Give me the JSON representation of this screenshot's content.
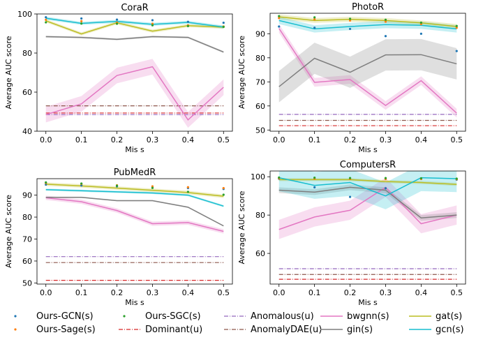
{
  "chart_data": [
    {
      "type": "line",
      "title": "CoraR",
      "xlabel": "Mis s",
      "ylabel": "Average AUC score",
      "x": [
        0.0,
        0.1,
        0.2,
        0.3,
        0.4,
        0.5
      ],
      "x_ticks": [
        "0.0",
        "0.1",
        "0.2",
        "0.3",
        "0.4",
        "0.5"
      ],
      "y_ticks": [
        40,
        60,
        80,
        100
      ],
      "xlim": [
        -0.025,
        0.525
      ],
      "ylim": [
        40,
        100
      ],
      "series": [
        {
          "name": "Ours-GCN(s)",
          "color": "#1f77b4",
          "kind": "point",
          "values": [
            98.3,
            97.7,
            97.1,
            96.8,
            96.0,
            95.5
          ]
        },
        {
          "name": "Ours-Sage(s)",
          "color": "#ff7f0e",
          "kind": "point",
          "values": [
            97.0,
            96.3,
            95.6,
            95.0,
            94.2,
            93.6
          ]
        },
        {
          "name": "Ours-SGC(s)",
          "color": "#2ca02c",
          "kind": "point",
          "values": [
            95.7,
            95.1,
            95.0,
            94.2,
            93.8,
            93.4
          ]
        },
        {
          "name": "Anomalous(u)",
          "color": "#9467bd",
          "kind": "dashdot",
          "values": [
            48.5,
            48.5,
            48.5,
            48.5,
            48.5,
            48.5
          ]
        },
        {
          "name": "Dominant(u)",
          "color": "#d62728",
          "kind": "dashdot",
          "values": [
            49.3,
            49.3,
            49.3,
            49.3,
            49.3,
            49.3
          ]
        },
        {
          "name": "AnomalyDAE(u)",
          "color": "#8c564b",
          "kind": "dashdot",
          "values": [
            53.0,
            53.0,
            53.0,
            53.0,
            53.0,
            53.0
          ]
        },
        {
          "name": "bwgnn(s)",
          "color": "#e377c2",
          "kind": "line",
          "values": [
            48.5,
            54.0,
            68.5,
            73.0,
            45.8,
            62.5
          ],
          "band": 4.0
        },
        {
          "name": "gin(s)",
          "color": "#7f7f7f",
          "kind": "line",
          "values": [
            88.4,
            88.0,
            87.0,
            88.4,
            88.0,
            80.5
          ],
          "band": 0.5
        },
        {
          "name": "gat(s)",
          "color": "#bcbd22",
          "kind": "line",
          "values": [
            96.5,
            89.8,
            95.5,
            91.2,
            94.0,
            93.2
          ],
          "band": 0.8
        },
        {
          "name": "gcn(s)",
          "color": "#17becf",
          "kind": "line",
          "values": [
            97.8,
            95.2,
            96.2,
            94.7,
            95.7,
            93.3
          ],
          "band": 0.8
        }
      ]
    },
    {
      "type": "line",
      "title": "PhotoR",
      "xlabel": "Mis s",
      "ylabel": "Average AUC score",
      "x": [
        0.0,
        0.1,
        0.2,
        0.3,
        0.4,
        0.5
      ],
      "x_ticks": [
        "0.0",
        "0.1",
        "0.2",
        "0.3",
        "0.4",
        "0.5"
      ],
      "y_ticks": [
        50,
        60,
        70,
        80,
        90
      ],
      "xlim": [
        -0.025,
        0.525
      ],
      "ylim": [
        49.5,
        98.5
      ],
      "series": [
        {
          "name": "Ours-GCN(s)",
          "color": "#1f77b4",
          "kind": "point",
          "values": [
            93.0,
            92.5,
            92.0,
            89.0,
            90.0,
            82.8
          ]
        },
        {
          "name": "Ours-Sage(s)",
          "color": "#ff7f0e",
          "kind": "point",
          "values": [
            96.5,
            96.0,
            95.5,
            95.0,
            94.0,
            92.5
          ]
        },
        {
          "name": "Ours-SGC(s)",
          "color": "#2ca02c",
          "kind": "point",
          "values": [
            97.3,
            96.8,
            96.2,
            95.8,
            94.6,
            93.2
          ]
        },
        {
          "name": "Anomalous(u)",
          "color": "#9467bd",
          "kind": "dashdot",
          "values": [
            56.5,
            56.5,
            56.5,
            56.5,
            56.5,
            56.5
          ]
        },
        {
          "name": "Dominant(u)",
          "color": "#d62728",
          "kind": "dashdot",
          "values": [
            51.8,
            51.8,
            51.8,
            51.8,
            51.8,
            51.8
          ]
        },
        {
          "name": "AnomalyDAE(u)",
          "color": "#8c564b",
          "kind": "dashdot",
          "values": [
            54.0,
            54.0,
            54.0,
            54.0,
            54.0,
            54.0
          ]
        },
        {
          "name": "bwgnn(s)",
          "color": "#e377c2",
          "kind": "line",
          "values": [
            92.2,
            69.8,
            71.0,
            60.2,
            70.5,
            57.0
          ],
          "band": 1.8
        },
        {
          "name": "gin(s)",
          "color": "#7f7f7f",
          "kind": "line",
          "values": [
            68.0,
            79.8,
            74.0,
            81.2,
            81.3,
            77.5
          ],
          "band": 6.5
        },
        {
          "name": "gat(s)",
          "color": "#bcbd22",
          "kind": "line",
          "values": [
            97.0,
            95.5,
            96.0,
            95.5,
            94.5,
            93.0
          ],
          "band": 1.0
        },
        {
          "name": "gcn(s)",
          "color": "#17becf",
          "kind": "line",
          "values": [
            95.5,
            92.0,
            93.0,
            93.8,
            93.5,
            92.0
          ],
          "band": 1.5
        }
      ]
    },
    {
      "type": "line",
      "title": "PubMedR",
      "xlabel": "Mis s",
      "ylabel": "Average AUC score",
      "x": [
        0.0,
        0.1,
        0.2,
        0.3,
        0.4,
        0.5
      ],
      "x_ticks": [
        "0.0",
        "0.1",
        "0.2",
        "0.3",
        "0.4",
        "0.5"
      ],
      "y_ticks": [
        50,
        60,
        70,
        80,
        90
      ],
      "xlim": [
        -0.025,
        0.525
      ],
      "ylim": [
        49.5,
        97.5
      ],
      "series": [
        {
          "name": "Ours-GCN(s)",
          "color": "#1f77b4",
          "kind": "point",
          "values": [
            94.8,
            94.4,
            94.0,
            93.5,
            93.2,
            92.8
          ]
        },
        {
          "name": "Ours-Sage(s)",
          "color": "#ff7f0e",
          "kind": "point",
          "values": [
            95.5,
            95.1,
            94.5,
            94.0,
            93.6,
            93.2
          ]
        },
        {
          "name": "Ours-SGC(s)",
          "color": "#2ca02c",
          "kind": "point",
          "values": [
            95.8,
            95.3,
            94.3,
            93.3,
            91.5,
            90.2
          ]
        },
        {
          "name": "Anomalous(u)",
          "color": "#9467bd",
          "kind": "dashdot",
          "values": [
            62.0,
            62.0,
            62.0,
            62.0,
            62.0,
            62.0
          ]
        },
        {
          "name": "Dominant(u)",
          "color": "#d62728",
          "kind": "dashdot",
          "values": [
            51.2,
            51.2,
            51.2,
            51.2,
            51.2,
            51.2
          ]
        },
        {
          "name": "AnomalyDAE(u)",
          "color": "#8c564b",
          "kind": "dashdot",
          "values": [
            59.3,
            59.3,
            59.3,
            59.3,
            59.3,
            59.3
          ]
        },
        {
          "name": "bwgnn(s)",
          "color": "#e377c2",
          "kind": "line",
          "values": [
            88.8,
            87.0,
            83.0,
            77.0,
            77.5,
            73.5
          ],
          "band": 1.0
        },
        {
          "name": "gin(s)",
          "color": "#7f7f7f",
          "kind": "line",
          "values": [
            89.0,
            89.0,
            87.5,
            87.5,
            84.5,
            76.0
          ],
          "band": 0.3
        },
        {
          "name": "gat(s)",
          "color": "#bcbd22",
          "kind": "line",
          "values": [
            95.0,
            94.2,
            93.2,
            92.2,
            91.2,
            89.5
          ],
          "band": 0.8
        },
        {
          "name": "gcn(s)",
          "color": "#17becf",
          "kind": "line",
          "values": [
            92.5,
            92.0,
            91.5,
            91.0,
            90.0,
            85.0
          ],
          "band": 0.5
        }
      ]
    },
    {
      "type": "line",
      "title": "ComputersR",
      "xlabel": "Mis s",
      "ylabel": "Average AUC score",
      "x": [
        0.0,
        0.1,
        0.2,
        0.3,
        0.4,
        0.5
      ],
      "x_ticks": [
        "0.0",
        "0.1",
        "0.2",
        "0.3",
        "0.4",
        "0.5"
      ],
      "y_ticks": [
        60,
        80,
        100
      ],
      "xlim": [
        -0.025,
        0.525
      ],
      "ylim": [
        44,
        103
      ],
      "series": [
        {
          "name": "Ours-GCN(s)",
          "color": "#1f77b4",
          "kind": "point",
          "values": [
            99.0,
            94.5,
            89.5,
            94.0,
            99.0,
            98.5
          ]
        },
        {
          "name": "Ours-Sage(s)",
          "color": "#ff7f0e",
          "kind": "point",
          "values": [
            99.2,
            99.0,
            98.8,
            98.8,
            98.8,
            98.7
          ]
        },
        {
          "name": "Ours-SGC(s)",
          "color": "#2ca02c",
          "kind": "point",
          "values": [
            99.6,
            99.5,
            99.3,
            99.3,
            99.2,
            99.0
          ]
        },
        {
          "name": "Anomalous(u)",
          "color": "#9467bd",
          "kind": "dashdot",
          "values": [
            52.0,
            52.0,
            52.0,
            52.0,
            52.0,
            52.0
          ]
        },
        {
          "name": "Dominant(u)",
          "color": "#d62728",
          "kind": "dashdot",
          "values": [
            46.5,
            46.5,
            46.5,
            46.5,
            46.5,
            46.5
          ]
        },
        {
          "name": "AnomalyDAE(u)",
          "color": "#8c564b",
          "kind": "dashdot",
          "values": [
            49.0,
            49.0,
            49.0,
            49.0,
            49.0,
            49.0
          ]
        },
        {
          "name": "bwgnn(s)",
          "color": "#e377c2",
          "kind": "line",
          "values": [
            72.5,
            79.0,
            82.5,
            94.5,
            75.5,
            80.0
          ],
          "band": 5.0
        },
        {
          "name": "gin(s)",
          "color": "#7f7f7f",
          "kind": "line",
          "values": [
            93.0,
            92.0,
            94.5,
            93.0,
            78.5,
            80.0
          ],
          "band": 1.5
        },
        {
          "name": "gat(s)",
          "color": "#bcbd22",
          "kind": "line",
          "values": [
            98.5,
            98.5,
            98.5,
            97.5,
            97.0,
            96.0
          ],
          "band": 0.8
        },
        {
          "name": "gcn(s)",
          "color": "#17becf",
          "kind": "line",
          "values": [
            99.5,
            95.5,
            97.0,
            90.0,
            99.5,
            99.0
          ],
          "band": 7.0
        }
      ]
    }
  ],
  "legend": [
    {
      "label": "Ours-GCN(s)",
      "kind": "point",
      "color": "#1f77b4"
    },
    {
      "label": "Ours-Sage(s)",
      "kind": "point",
      "color": "#ff7f0e"
    },
    {
      "label": "Ours-SGC(s)",
      "kind": "point",
      "color": "#2ca02c"
    },
    {
      "label": "Dominant(u)",
      "kind": "dashdot",
      "color": "#d62728"
    },
    {
      "label": "Anomalous(u)",
      "kind": "dashdot",
      "color": "#9467bd"
    },
    {
      "label": "AnomalyDAE(u)",
      "kind": "dashdot",
      "color": "#8c564b"
    },
    {
      "label": "bwgnn(s)",
      "kind": "line",
      "color": "#e377c2"
    },
    {
      "label": "gin(s)",
      "kind": "line",
      "color": "#7f7f7f"
    },
    {
      "label": "gat(s)",
      "kind": "line",
      "color": "#bcbd22"
    },
    {
      "label": "gcn(s)",
      "kind": "line",
      "color": "#17becf"
    }
  ]
}
